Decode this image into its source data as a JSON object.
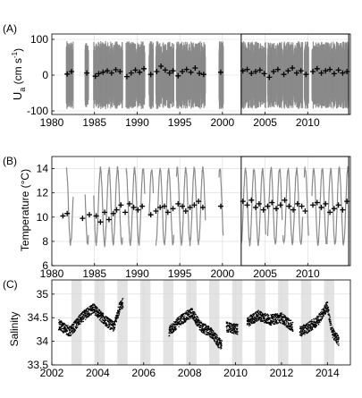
{
  "chart_data": [
    {
      "panel_label": "(A)",
      "type": "scatter",
      "ylabel_main": "U",
      "ylabel_sub": "a",
      "ylabel_unit_pre": " (cm s",
      "ylabel_unit_sup": "-1",
      "ylabel_unit_post": ")",
      "xlim": [
        1980,
        2015
      ],
      "ylim": [
        -110,
        115
      ],
      "xticks": [
        "1980",
        "1985",
        "1990",
        "1995",
        "2000",
        "2005",
        "2010"
      ],
      "yticks": [
        "-100",
        "0",
        "100"
      ],
      "grid": true,
      "highlight_box": [
        2002.2,
        2014.8
      ],
      "series": [
        {
          "style": "grey-dense-spread",
          "segments": [
            [
              1981.7,
              1982.5
            ],
            [
              1983.9,
              1984.3
            ],
            [
              1984.9,
              1988.3
            ],
            [
              1988.7,
              1990.9
            ],
            [
              1991.4,
              1991.9
            ],
            [
              1992.2,
              1994.3
            ],
            [
              1994.6,
              1998.0
            ],
            [
              1999.6,
              2000.1
            ],
            [
              2002.2,
              2005.1
            ],
            [
              2005.3,
              2007.0
            ],
            [
              2007.1,
              2009.4
            ],
            [
              2009.6,
              2010.1
            ],
            [
              2010.5,
              2014.8
            ]
          ],
          "amplitude": 95
        },
        {
          "style": "black-plus-monthly-means",
          "x": [
            1981.8,
            1982.3,
            1984.1,
            1985.1,
            1985.5,
            1986.0,
            1986.5,
            1987.0,
            1987.5,
            1988.0,
            1988.8,
            1989.3,
            1989.8,
            1990.3,
            1990.8,
            1991.6,
            1992.3,
            1992.8,
            1993.3,
            1993.8,
            1994.2,
            1994.8,
            1995.3,
            1995.8,
            1996.3,
            1996.8,
            1997.3,
            1997.8,
            1999.8,
            2002.4,
            2002.9,
            2003.4,
            2003.9,
            2004.4,
            2004.9,
            2005.5,
            2006.0,
            2006.5,
            2007.2,
            2007.7,
            2008.2,
            2008.7,
            2009.2,
            2009.8,
            2010.6,
            2011.1,
            2011.6,
            2012.1,
            2012.6,
            2013.1,
            2013.6,
            2014.1,
            2014.6
          ],
          "y": [
            3,
            10,
            6,
            -3,
            4,
            8,
            12,
            6,
            15,
            10,
            -4,
            6,
            14,
            8,
            18,
            2,
            10,
            25,
            14,
            6,
            12,
            -2,
            10,
            16,
            8,
            20,
            5,
            2,
            8,
            12,
            16,
            5,
            10,
            14,
            4,
            -6,
            10,
            16,
            2,
            12,
            20,
            6,
            12,
            2,
            10,
            18,
            6,
            12,
            16,
            4,
            14,
            6,
            10
          ]
        }
      ]
    },
    {
      "panel_label": "(B)",
      "type": "line",
      "ylabel": "Temperature (°C)",
      "xlim": [
        1980,
        2015
      ],
      "ylim": [
        6,
        15
      ],
      "xticks": [
        "1980",
        "1985",
        "1990",
        "1995",
        "2000",
        "2005",
        "2010"
      ],
      "yticks": [
        "6",
        "8",
        "10",
        "12",
        "14"
      ],
      "grid": true,
      "highlight_box": [
        2002.2,
        2014.8
      ],
      "series": [
        {
          "style": "grey-seasonal-line",
          "segments": [
            [
              1981.7,
              1982.5
            ],
            [
              1983.9,
              1984.3
            ],
            [
              1984.9,
              1988.3
            ],
            [
              1988.7,
              1990.9
            ],
            [
              1991.4,
              1991.9
            ],
            [
              1992.2,
              1994.3
            ],
            [
              1994.6,
              1998.0
            ],
            [
              1999.6,
              2000.1
            ],
            [
              2002.2,
              2005.1
            ],
            [
              2005.3,
              2007.0
            ],
            [
              2007.1,
              2009.4
            ],
            [
              2009.6,
              2010.1
            ],
            [
              2010.5,
              2014.8
            ]
          ],
          "seasonal_min": 7.8,
          "seasonal_max": 14.0
        },
        {
          "style": "black-plus-monthly-means",
          "x": [
            1981.3,
            1981.8,
            1983.6,
            1984.4,
            1985.2,
            1985.7,
            1986.2,
            1986.7,
            1987.2,
            1987.6,
            1988.1,
            1988.6,
            1989.1,
            1989.6,
            1990.1,
            1990.6,
            1991.6,
            1992.2,
            1992.7,
            1993.2,
            1993.6,
            1994.2,
            1994.8,
            1995.3,
            1995.7,
            1996.2,
            1996.7,
            1997.2,
            1997.7,
            1999.8,
            2002.4,
            2002.9,
            2003.4,
            2003.9,
            2004.3,
            2004.8,
            2005.3,
            2005.8,
            2006.3,
            2006.8,
            2007.3,
            2007.8,
            2008.3,
            2008.8,
            2009.3,
            2009.7,
            2010.6,
            2011.1,
            2011.6,
            2012.1,
            2012.6,
            2013.1,
            2013.6,
            2014.1,
            2014.6
          ],
          "y": [
            10.1,
            10.3,
            9.9,
            10.2,
            10.1,
            9.6,
            10.4,
            9.8,
            10.3,
            10.6,
            11.0,
            10.4,
            11.1,
            10.8,
            10.6,
            10.9,
            10.2,
            10.5,
            10.8,
            10.9,
            10.4,
            10.7,
            11.1,
            10.9,
            10.5,
            10.8,
            11.0,
            11.3,
            10.8,
            10.9,
            11.3,
            11.0,
            11.4,
            10.8,
            11.1,
            10.6,
            10.9,
            11.2,
            10.7,
            11.0,
            11.4,
            10.9,
            10.6,
            11.1,
            10.9,
            10.5,
            11.0,
            11.2,
            10.8,
            11.1,
            10.4,
            10.7,
            11.0,
            10.6,
            11.3
          ]
        }
      ]
    },
    {
      "panel_label": "(C)",
      "type": "scatter",
      "ylabel": "Salinity",
      "xlim": [
        2002,
        2015
      ],
      "ylim": [
        33.5,
        35.3
      ],
      "xticks": [
        "2002",
        "2004",
        "2006",
        "2008",
        "2010",
        "2012",
        "2014"
      ],
      "yticks": [
        "33.5",
        "34",
        "34.5",
        "35"
      ],
      "grid": true,
      "shaded_bands": [
        [
          2002.85,
          2003.3
        ],
        [
          2003.85,
          2004.3
        ],
        [
          2004.85,
          2005.3
        ],
        [
          2005.85,
          2006.3
        ],
        [
          2006.85,
          2007.3
        ],
        [
          2007.85,
          2008.3
        ],
        [
          2008.85,
          2009.3
        ],
        [
          2009.85,
          2010.3
        ],
        [
          2010.85,
          2011.3
        ],
        [
          2011.85,
          2012.3
        ],
        [
          2012.85,
          2013.3
        ],
        [
          2013.85,
          2014.3
        ]
      ],
      "series": [
        {
          "style": "black-dots",
          "segments": [
            {
              "range": [
                2002.3,
                2005.1
              ],
              "knots": [
                [
                  2002.3,
                  34.35
                ],
                [
                  2002.8,
                  34.2
                ],
                [
                  2003.3,
                  34.5
                ],
                [
                  2003.8,
                  34.7
                ],
                [
                  2004.3,
                  34.45
                ],
                [
                  2004.7,
                  34.3
                ],
                [
                  2005.0,
                  34.8
                ]
              ]
            },
            {
              "range": [
                2007.1,
                2009.4
              ],
              "knots": [
                [
                  2007.1,
                  34.2
                ],
                [
                  2007.6,
                  34.45
                ],
                [
                  2008.1,
                  34.6
                ],
                [
                  2008.5,
                  34.3
                ],
                [
                  2008.9,
                  34.2
                ],
                [
                  2009.3,
                  33.95
                ]
              ]
            },
            {
              "range": [
                2009.6,
                2010.1
              ],
              "knots": [
                [
                  2009.6,
                  34.3
                ],
                [
                  2010.1,
                  34.25
                ]
              ]
            },
            {
              "range": [
                2010.5,
                2012.5
              ],
              "knots": [
                [
                  2010.5,
                  34.4
                ],
                [
                  2011.0,
                  34.55
                ],
                [
                  2011.5,
                  34.45
                ],
                [
                  2012.0,
                  34.5
                ],
                [
                  2012.5,
                  34.3
                ]
              ]
            },
            {
              "range": [
                2012.8,
                2014.5
              ],
              "knots": [
                [
                  2012.8,
                  34.2
                ],
                [
                  2013.2,
                  34.3
                ],
                [
                  2013.6,
                  34.45
                ],
                [
                  2014.0,
                  34.75
                ],
                [
                  2014.2,
                  34.2
                ],
                [
                  2014.5,
                  34.0
                ]
              ]
            }
          ]
        }
      ]
    }
  ]
}
